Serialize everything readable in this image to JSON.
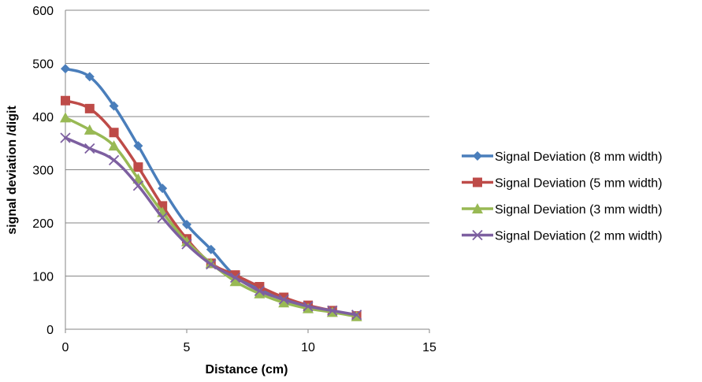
{
  "chart_data": {
    "type": "line",
    "title": "",
    "xlabel": "Distance (cm)",
    "ylabel": "signal deviation /digit",
    "xlim": [
      0,
      15
    ],
    "ylim": [
      0,
      600
    ],
    "xticks": [
      0,
      5,
      10,
      15
    ],
    "yticks": [
      0,
      100,
      200,
      300,
      400,
      500,
      600
    ],
    "grid": "horizontal",
    "legend_position": "right",
    "x": [
      0,
      1,
      2,
      3,
      4,
      5,
      6,
      7,
      8,
      9,
      10,
      11,
      12
    ],
    "series": [
      {
        "name": "Signal Deviation (8 mm width)",
        "color": "#4a7ebb",
        "marker": "diamond",
        "values": [
          490,
          475,
          420,
          345,
          265,
          197,
          150,
          100,
          75,
          55,
          42,
          33,
          25
        ]
      },
      {
        "name": "Signal Deviation (5 mm width)",
        "color": "#be4b48",
        "marker": "square",
        "values": [
          430,
          415,
          370,
          305,
          232,
          170,
          124,
          102,
          80,
          60,
          45,
          35,
          25
        ]
      },
      {
        "name": "Signal Deviation (3 mm width)",
        "color": "#98b954",
        "marker": "triangle",
        "values": [
          398,
          375,
          345,
          283,
          220,
          165,
          124,
          90,
          67,
          50,
          39,
          32,
          24
        ]
      },
      {
        "name": "Signal Deviation (2 mm width)",
        "color": "#7d5fa0",
        "marker": "x",
        "values": [
          360,
          340,
          318,
          270,
          210,
          160,
          122,
          97,
          72,
          56,
          43,
          35,
          27
        ]
      }
    ]
  }
}
